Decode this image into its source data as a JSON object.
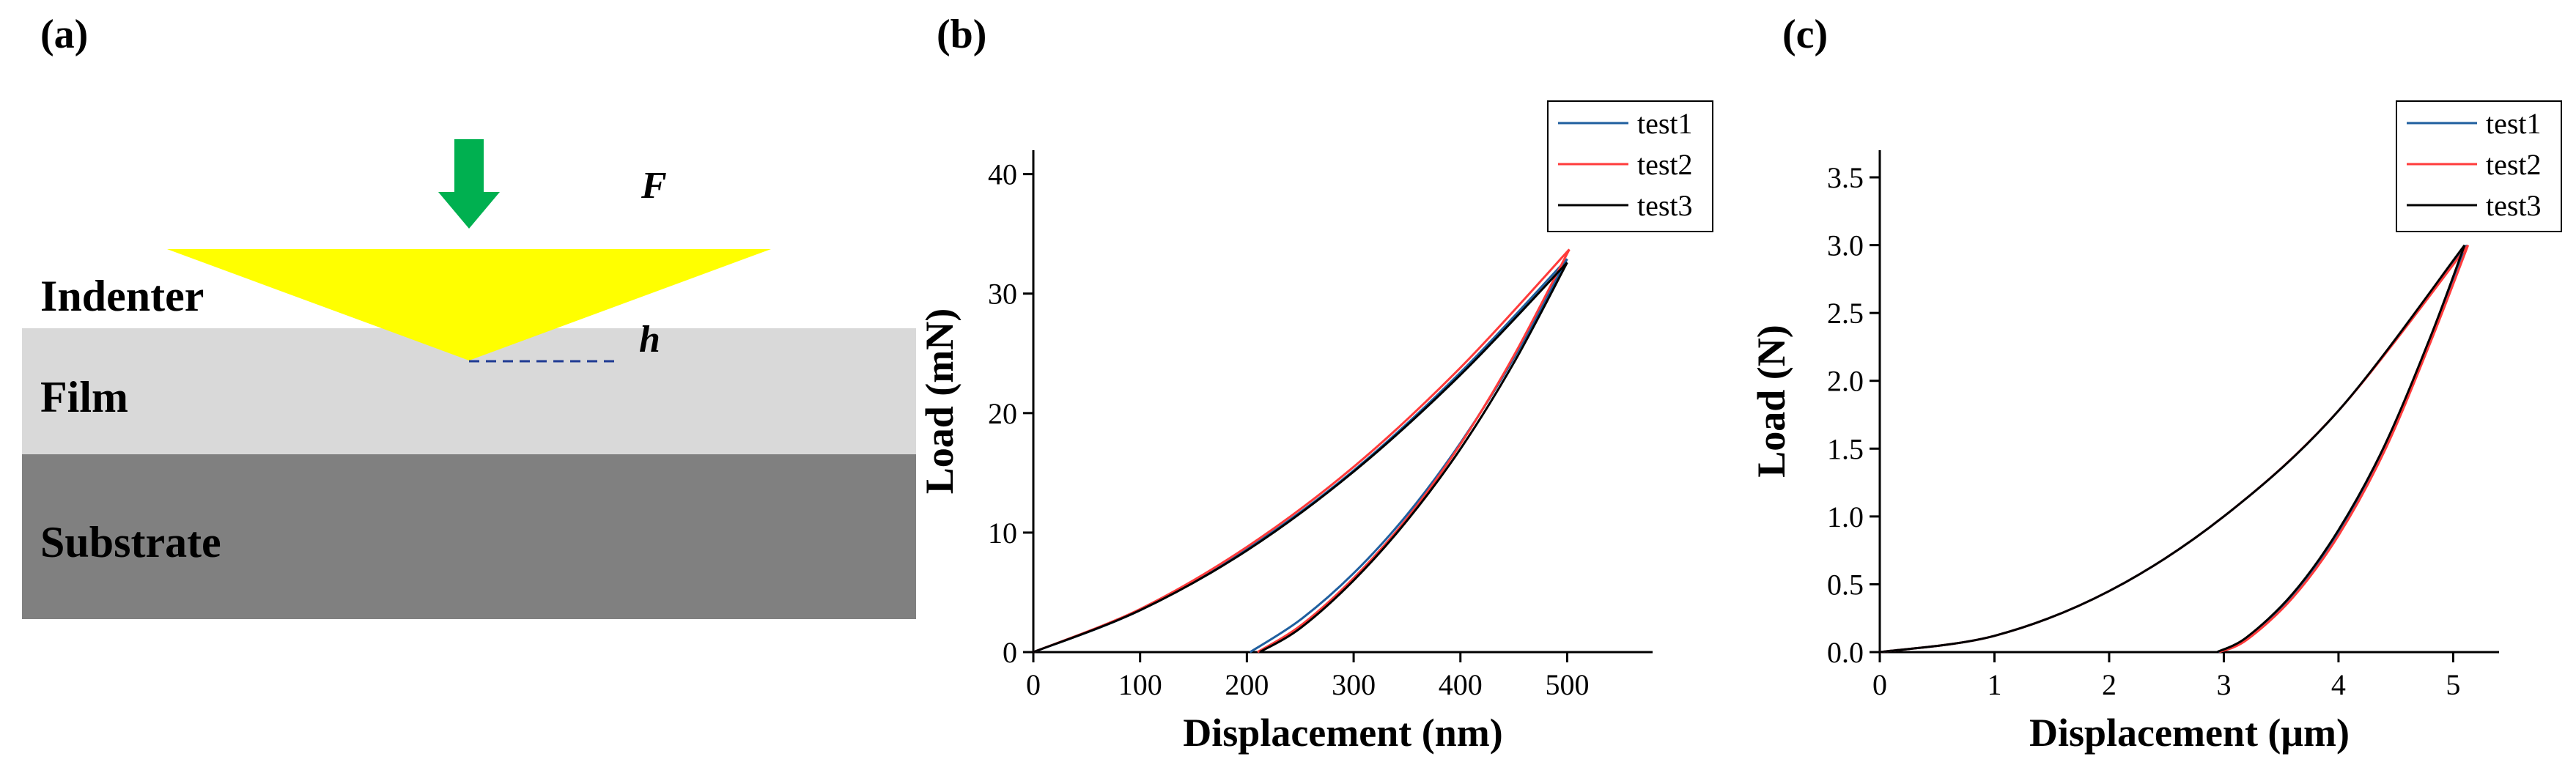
{
  "panels": {
    "a": {
      "label": "(a)",
      "force_label": "F",
      "depth_label": "h",
      "layers": {
        "indenter": "Indenter",
        "film": "Film",
        "substrate": "Substrate"
      },
      "colors": {
        "indenter": "#ffff00",
        "arrow": "#00b050",
        "film": "#d9d9d9",
        "substrate": "#808080",
        "depth_line": "#1f3a93"
      }
    },
    "b": {
      "label": "(b)"
    },
    "c": {
      "label": "(c)"
    }
  },
  "chart_data": [
    {
      "type": "line",
      "panel": "b",
      "xlabel": "Displacement (nm)",
      "ylabel": "Load (mN)",
      "xlim": [
        0,
        580
      ],
      "ylim": [
        0,
        42
      ],
      "xticks": [
        0,
        100,
        200,
        300,
        400,
        500
      ],
      "yticks": [
        0,
        10,
        20,
        30,
        40
      ],
      "legend_position": "top-right",
      "series": [
        {
          "name": "test1",
          "color": "#1f5f9f",
          "loading": {
            "x": [
              0,
              100,
              200,
              300,
              400,
              500
            ],
            "y": [
              0,
              3.5,
              8.6,
              15.2,
              23.4,
              32.9
            ]
          },
          "unloading": {
            "x": [
              500,
              450,
              400,
              350,
              300,
              250,
              203
            ],
            "y": [
              32.9,
              24.6,
              17.5,
              11.5,
              6.6,
              2.7,
              0
            ]
          }
        },
        {
          "name": "test2",
          "color": "#ff3b3b",
          "loading": {
            "x": [
              0,
              100,
              200,
              300,
              400,
              502
            ],
            "y": [
              0,
              3.6,
              8.8,
              15.5,
              23.8,
              33.7
            ]
          },
          "unloading": {
            "x": [
              502,
              450,
              400,
              350,
              300,
              250,
              210
            ],
            "y": [
              33.7,
              24.8,
              17.4,
              11.2,
              6.2,
              2.2,
              0
            ]
          }
        },
        {
          "name": "test3",
          "color": "#000000",
          "loading": {
            "x": [
              0,
              100,
              200,
              300,
              400,
              500
            ],
            "y": [
              0,
              3.5,
              8.5,
              15.1,
              23.2,
              32.6
            ]
          },
          "unloading": {
            "x": [
              500,
              450,
              400,
              350,
              300,
              250,
              212
            ],
            "y": [
              32.6,
              24.2,
              17.0,
              11.0,
              6.0,
              2.0,
              0
            ]
          }
        }
      ]
    },
    {
      "type": "line",
      "panel": "c",
      "xlabel": "Displacement (μm)",
      "ylabel": "Load (N)",
      "xlim": [
        0,
        5.4
      ],
      "ylim": [
        0,
        3.7
      ],
      "xticks": [
        0,
        1,
        2,
        3,
        4,
        5
      ],
      "yticks": [
        0.0,
        0.5,
        1.0,
        1.5,
        2.0,
        2.5,
        3.0,
        3.5
      ],
      "ytick_labels": [
        "0.0",
        "0.5",
        "1.0",
        "1.5",
        "2.0",
        "2.5",
        "3.0",
        "3.5"
      ],
      "legend_position": "top-right",
      "series": [
        {
          "name": "test1",
          "color": "#1f5f9f",
          "loading": {
            "x": [
              0,
              1,
              2,
              3,
              4,
              5.12
            ],
            "y": [
              0,
              0.12,
              0.45,
              1.0,
              1.78,
              3.0
            ]
          },
          "unloading": {
            "x": [
              5.12,
              4.8,
              4.4,
              4.0,
              3.6,
              3.2,
              2.95
            ],
            "y": [
              3.0,
              2.3,
              1.5,
              0.88,
              0.42,
              0.1,
              0
            ]
          }
        },
        {
          "name": "test2",
          "color": "#ff3b3b",
          "loading": {
            "x": [
              0,
              1,
              2,
              3,
              4,
              5.13
            ],
            "y": [
              0,
              0.12,
              0.45,
              1.0,
              1.78,
              3.0
            ]
          },
          "unloading": {
            "x": [
              5.13,
              4.8,
              4.4,
              4.0,
              3.6,
              3.2,
              2.96
            ],
            "y": [
              3.0,
              2.28,
              1.48,
              0.86,
              0.4,
              0.09,
              0
            ]
          }
        },
        {
          "name": "test3",
          "color": "#000000",
          "loading": {
            "x": [
              0,
              1,
              2,
              3,
              4,
              5.1
            ],
            "y": [
              0,
              0.12,
              0.45,
              1.0,
              1.78,
              3.0
            ]
          },
          "unloading": {
            "x": [
              5.1,
              4.8,
              4.4,
              4.0,
              3.6,
              3.2,
              2.94
            ],
            "y": [
              3.0,
              2.32,
              1.52,
              0.9,
              0.43,
              0.11,
              0
            ]
          }
        }
      ]
    }
  ]
}
